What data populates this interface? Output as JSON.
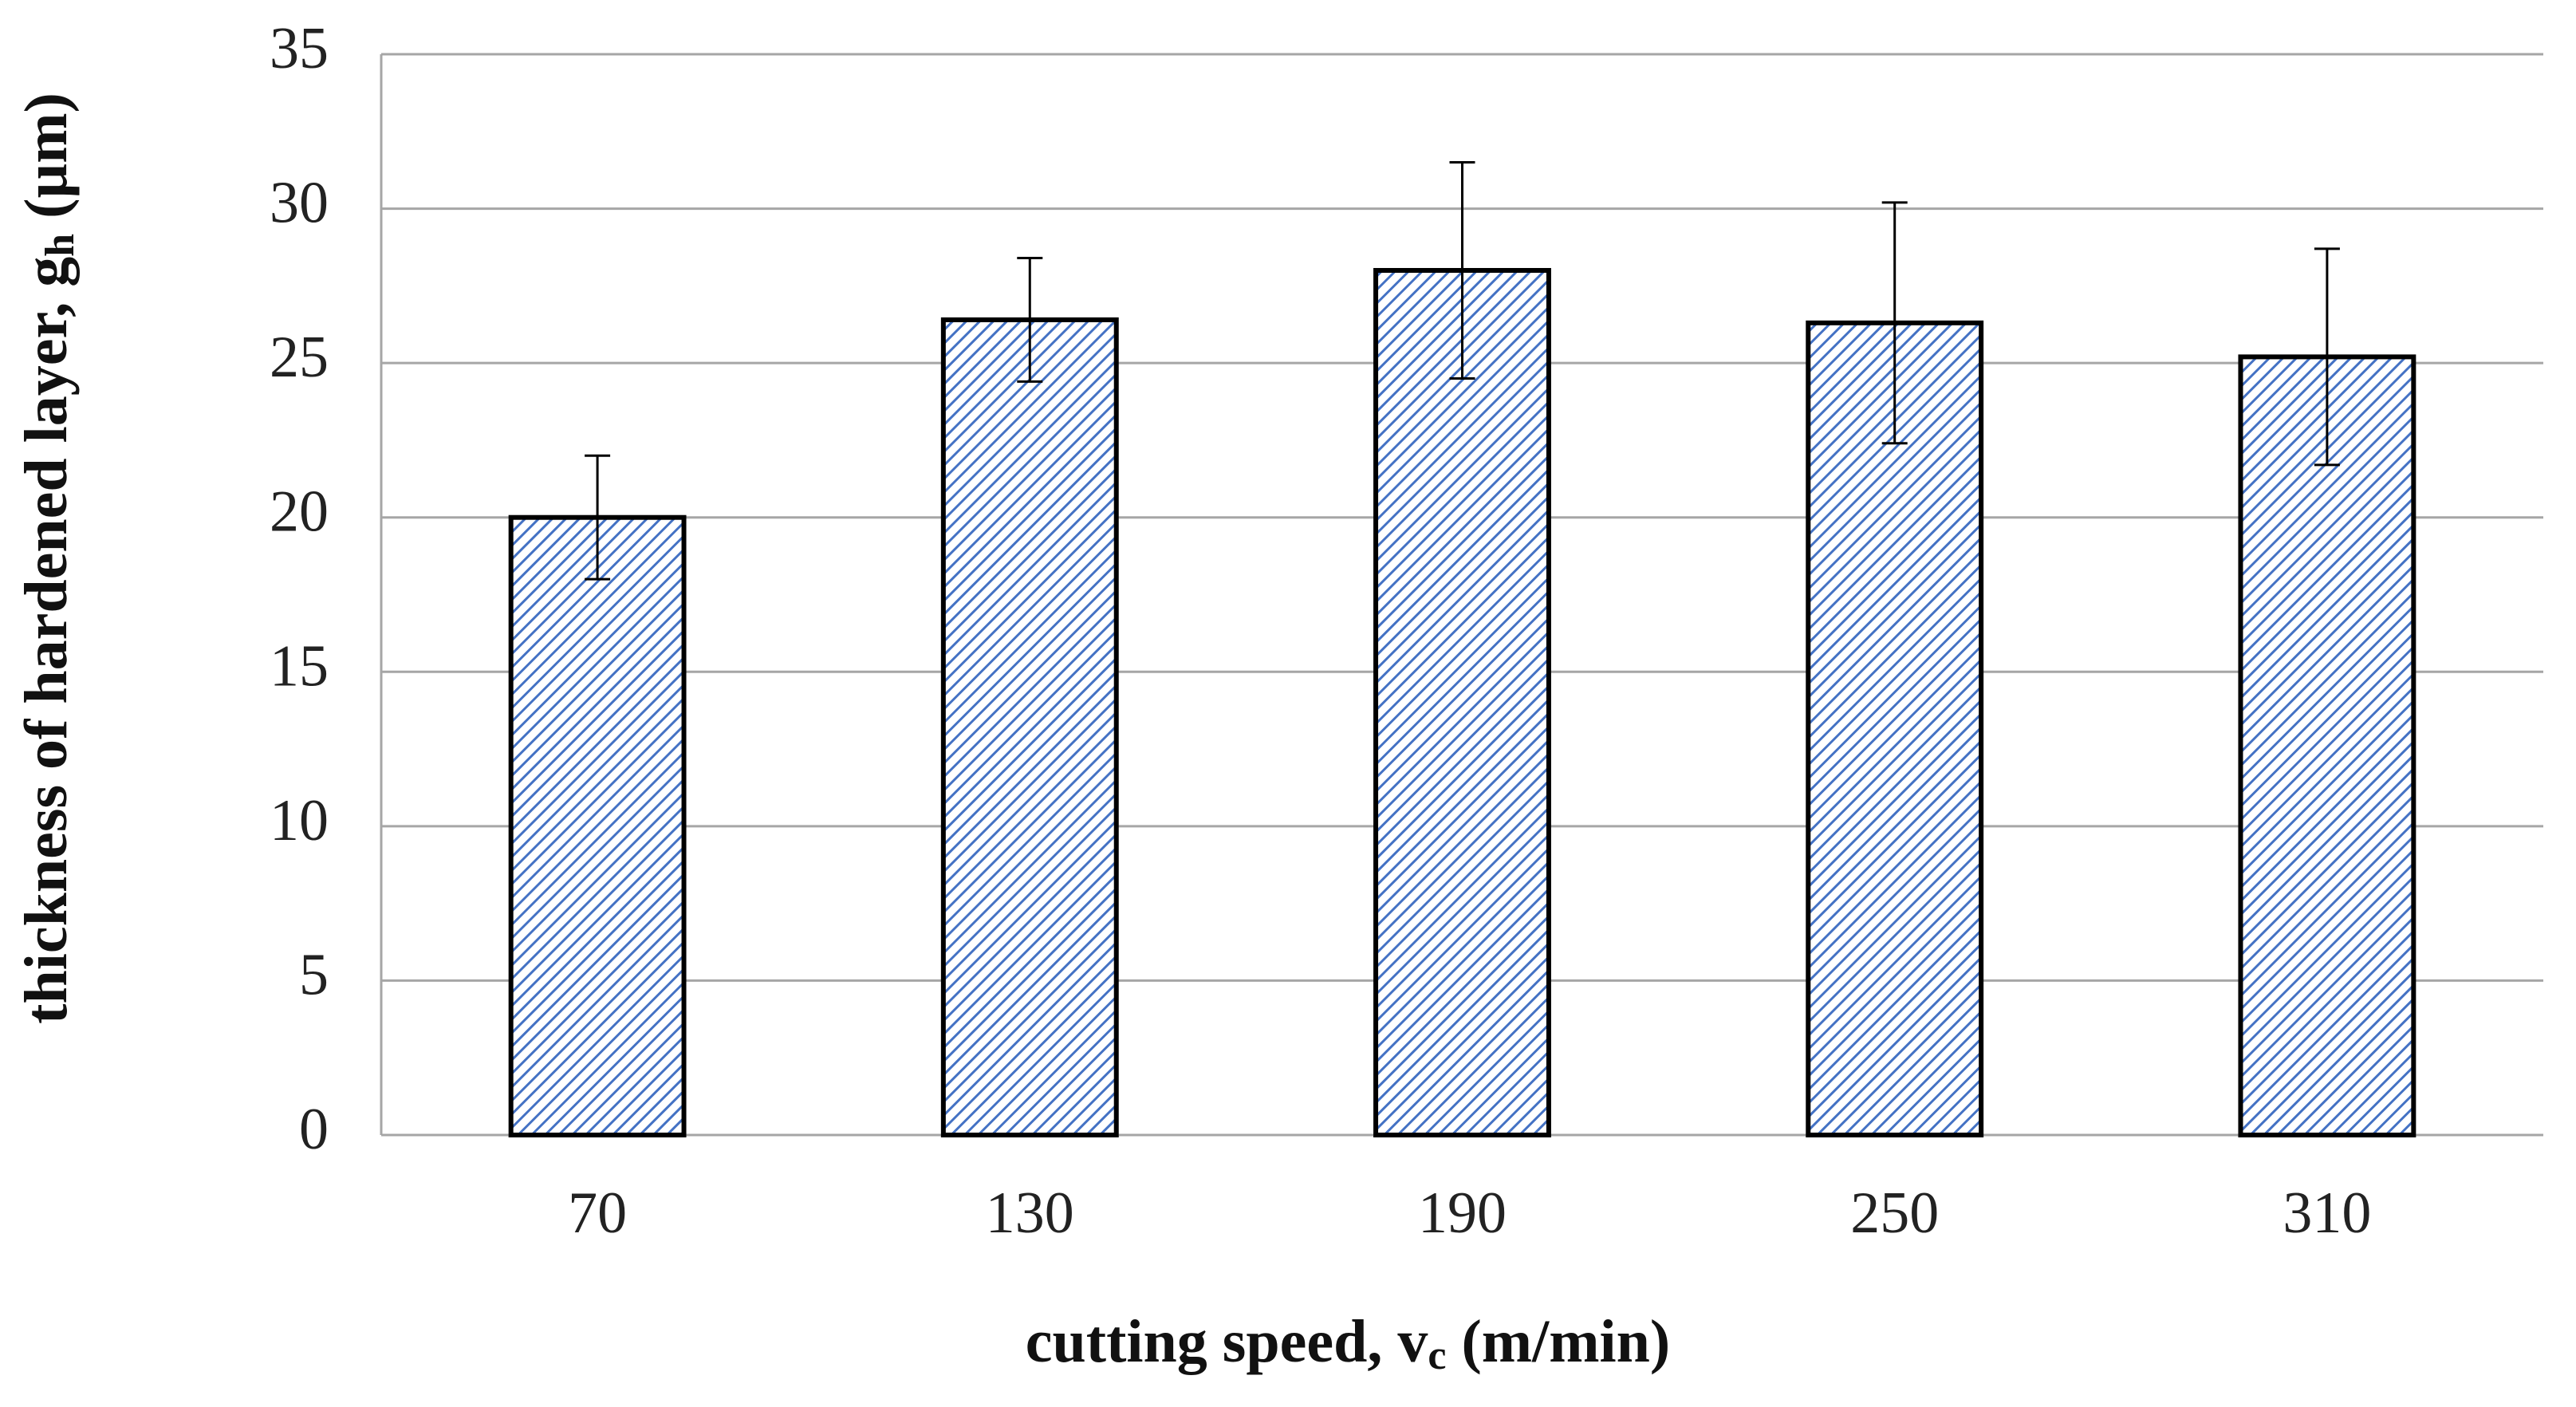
{
  "chart_data": {
    "type": "bar",
    "xlabel": {
      "text": "cutting speed,  v",
      "sub": "c",
      "suffix": " (m/min)"
    },
    "ylabel": {
      "text": "thickness of hardened layer, g",
      "sub": "h",
      "suffix": " (µm)"
    },
    "categories": [
      "70",
      "130",
      "190",
      "250",
      "310"
    ],
    "values": [
      20,
      26.4,
      28,
      26.3,
      25.2
    ],
    "errors": [
      2,
      2,
      3.5,
      3.9,
      3.5
    ],
    "color": "#4472c4",
    "ylim": [
      0,
      35
    ],
    "yticks": [
      0,
      5,
      10,
      15,
      20,
      25,
      30,
      35
    ],
    "grid": true
  }
}
